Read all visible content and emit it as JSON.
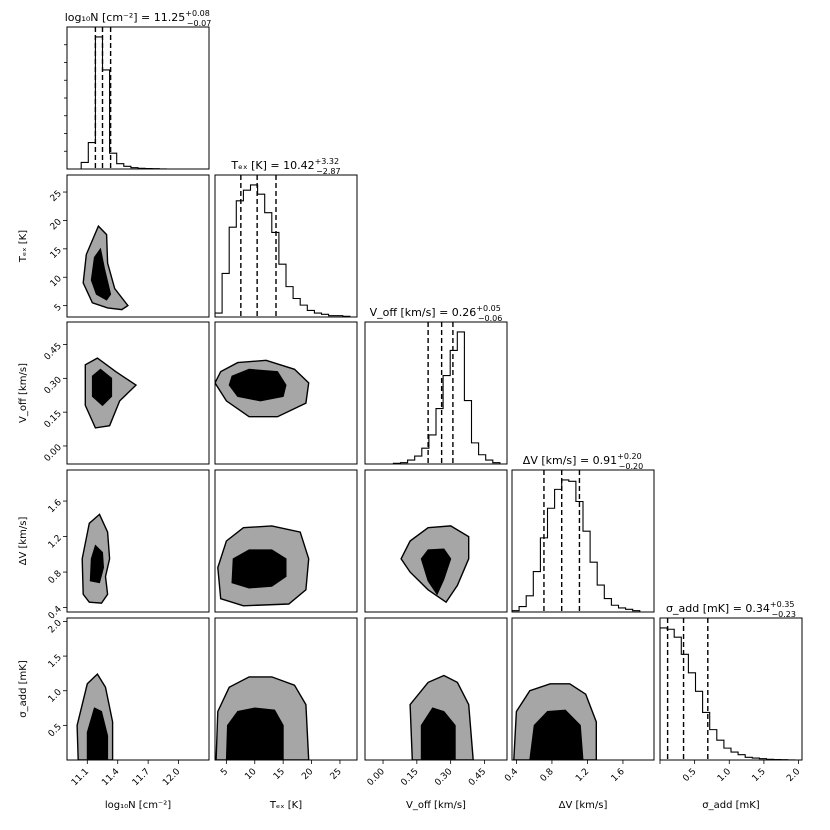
{
  "chart_data": {
    "type": "corner",
    "parameters": [
      {
        "key": "logN",
        "label": "log₁₀N [cm⁻²]",
        "title_name": "log₁₀N [cm⁻²]",
        "median": 11.25,
        "err_plus": 0.08,
        "err_minus": 0.07,
        "median_text": "11.25",
        "err_plus_text": "+0.08",
        "err_minus_text": "−0.07",
        "range": [
          10.9,
          12.3
        ],
        "ticks": [
          11.1,
          11.4,
          11.7,
          12.0
        ],
        "tick_labels": [
          "11.1",
          "11.4",
          "11.7",
          "12.0"
        ],
        "quantiles": [
          11.18,
          11.25,
          11.33
        ],
        "hist": [
          0,
          0,
          0.05,
          0.2,
          1.0,
          0.75,
          0.12,
          0.04,
          0.02,
          0.01,
          0.005,
          0.003,
          0.002,
          0.001,
          0,
          0,
          0,
          0,
          0,
          0
        ],
        "contour_center": 11.22
      },
      {
        "key": "Tex",
        "label": "Tₑₓ [K]",
        "title_name": "Tₑₓ [K]",
        "median": 10.42,
        "err_plus": 3.32,
        "err_minus": 2.87,
        "median_text": "10.42",
        "err_plus_text": "+3.32",
        "err_minus_text": "−2.87",
        "range": [
          3,
          28
        ],
        "ticks": [
          5,
          10,
          15,
          20,
          25
        ],
        "tick_labels": [
          "5",
          "10",
          "15",
          "20",
          "25"
        ],
        "quantiles": [
          7.55,
          10.42,
          13.74
        ],
        "hist": [
          0.03,
          0.33,
          0.68,
          0.88,
          0.96,
          1.0,
          0.93,
          0.79,
          0.64,
          0.4,
          0.23,
          0.14,
          0.09,
          0.05,
          0.03,
          0.02,
          0.01,
          0.01,
          0.005,
          0.0
        ],
        "contour_center": 10.4
      },
      {
        "key": "Voff",
        "label": "V_off [km/s]",
        "title_name": "V_off [km/s]",
        "median": 0.26,
        "err_plus": 0.05,
        "err_minus": 0.06,
        "median_text": "0.26",
        "err_plus_text": "+0.05",
        "err_minus_text": "−0.06",
        "range": [
          -0.08,
          0.55
        ],
        "ticks": [
          0.0,
          0.15,
          0.3,
          0.45
        ],
        "tick_labels": [
          "0.00",
          "0.15",
          "0.30",
          "0.45"
        ],
        "quantiles": [
          0.2,
          0.26,
          0.31
        ],
        "hist": [
          0,
          0,
          0,
          0,
          0.005,
          0.01,
          0.03,
          0.06,
          0.12,
          0.22,
          0.42,
          0.67,
          0.86,
          1.0,
          0.48,
          0.16,
          0.07,
          0.03,
          0.01,
          0
        ],
        "contour_center": 0.26
      },
      {
        "key": "dV",
        "label": "ΔV [km/s]",
        "title_name": "ΔV [km/s]",
        "median": 0.91,
        "err_plus": 0.2,
        "err_minus": 0.2,
        "median_text": "0.91",
        "err_plus_text": "+0.20",
        "err_minus_text": "−0.20",
        "range": [
          0.35,
          1.95
        ],
        "ticks": [
          0.4,
          0.8,
          1.2,
          1.6
        ],
        "tick_labels": [
          "0.4",
          "0.8",
          "1.2",
          "1.6"
        ],
        "quantiles": [
          0.71,
          0.91,
          1.11
        ],
        "hist": [
          0.01,
          0.04,
          0.12,
          0.3,
          0.55,
          0.77,
          0.91,
          0.98,
          0.97,
          0.82,
          0.6,
          0.37,
          0.2,
          0.1,
          0.05,
          0.03,
          0.02,
          0.01,
          0,
          0
        ],
        "contour_center": 0.88
      },
      {
        "key": "sadd",
        "label": "σ_add [mK]",
        "title_name": "σ_add [mK]",
        "median": 0.34,
        "err_plus": 0.35,
        "err_minus": 0.23,
        "median_text": "0.34",
        "err_plus_text": "+0.35",
        "err_minus_text": "−0.23",
        "range": [
          0.0,
          2.05
        ],
        "ticks": [
          0.5,
          1.0,
          1.5,
          2.0
        ],
        "tick_labels": [
          "0.5",
          "1.0",
          "1.5",
          "2.0"
        ],
        "diag_ticks": [
          0.0,
          0.5,
          1.0,
          1.5,
          2.0
        ],
        "diag_tick_labels": [
          "",
          "0.5",
          "1.0",
          "1.5",
          "2.0"
        ],
        "quantiles": [
          0.11,
          0.34,
          0.69
        ],
        "hist": [
          1.0,
          0.99,
          0.93,
          0.8,
          0.66,
          0.52,
          0.36,
          0.23,
          0.15,
          0.09,
          0.06,
          0.04,
          0.02,
          0.015,
          0.01,
          0.005,
          0.003,
          0.002,
          0.001,
          0
        ],
        "contour_center": 0.3
      }
    ],
    "contours": {
      "logN-Tex": {
        "outer": [
          [
            11.15,
            5.5
          ],
          [
            11.06,
            9
          ],
          [
            11.09,
            14
          ],
          [
            11.21,
            19
          ],
          [
            11.29,
            17.5
          ],
          [
            11.3,
            12.5
          ],
          [
            11.37,
            8
          ],
          [
            11.5,
            5
          ],
          [
            11.44,
            4.3
          ],
          [
            11.3,
            4.6
          ]
        ],
        "inner": [
          [
            11.19,
            7
          ],
          [
            11.14,
            9.5
          ],
          [
            11.17,
            13.5
          ],
          [
            11.23,
            15
          ],
          [
            11.27,
            11.5
          ],
          [
            11.33,
            7
          ],
          [
            11.29,
            6
          ]
        ]
      },
      "logN-Voff": {
        "outer": [
          [
            11.08,
            0.18
          ],
          [
            11.08,
            0.36
          ],
          [
            11.2,
            0.39
          ],
          [
            11.38,
            0.33
          ],
          [
            11.58,
            0.27
          ],
          [
            11.42,
            0.2
          ],
          [
            11.32,
            0.09
          ],
          [
            11.18,
            0.08
          ]
        ],
        "inner": [
          [
            11.15,
            0.22
          ],
          [
            11.15,
            0.31
          ],
          [
            11.23,
            0.34
          ],
          [
            11.34,
            0.3
          ],
          [
            11.34,
            0.22
          ],
          [
            11.25,
            0.18
          ]
        ]
      },
      "logN-dV": {
        "outer": [
          [
            11.06,
            0.55
          ],
          [
            11.05,
            0.95
          ],
          [
            11.12,
            1.35
          ],
          [
            11.22,
            1.45
          ],
          [
            11.3,
            1.25
          ],
          [
            11.32,
            0.95
          ],
          [
            11.28,
            0.75
          ],
          [
            11.3,
            0.55
          ],
          [
            11.24,
            0.45
          ],
          [
            11.12,
            0.46
          ]
        ],
        "inner": [
          [
            11.13,
            0.7
          ],
          [
            11.14,
            0.95
          ],
          [
            11.18,
            1.1
          ],
          [
            11.25,
            1.02
          ],
          [
            11.26,
            0.85
          ],
          [
            11.22,
            0.68
          ]
        ]
      },
      "logN-sadd": {
        "outer": [
          [
            11.01,
            0.0
          ],
          [
            11.0,
            0.5
          ],
          [
            11.1,
            1.1
          ],
          [
            11.2,
            1.24
          ],
          [
            11.28,
            1.05
          ],
          [
            11.35,
            0.55
          ],
          [
            11.35,
            0.0
          ]
        ],
        "inner": [
          [
            11.1,
            0.0
          ],
          [
            11.1,
            0.4
          ],
          [
            11.17,
            0.75
          ],
          [
            11.24,
            0.7
          ],
          [
            11.3,
            0.35
          ],
          [
            11.3,
            0.0
          ]
        ]
      },
      "Tex-Voff": {
        "outer": [
          [
            3,
            0.28
          ],
          [
            5,
            0.2
          ],
          [
            9,
            0.13
          ],
          [
            14,
            0.13
          ],
          [
            19,
            0.19
          ],
          [
            19.5,
            0.28
          ],
          [
            17,
            0.34
          ],
          [
            12,
            0.38
          ],
          [
            7,
            0.37
          ],
          [
            4,
            0.33
          ]
        ],
        "inner": [
          [
            5.5,
            0.27
          ],
          [
            7,
            0.22
          ],
          [
            11,
            0.2
          ],
          [
            15,
            0.22
          ],
          [
            15.5,
            0.27
          ],
          [
            14,
            0.33
          ],
          [
            9,
            0.34
          ],
          [
            6,
            0.31
          ]
        ]
      },
      "Tex-dV": {
        "outer": [
          [
            4,
            0.5
          ],
          [
            3.5,
            0.85
          ],
          [
            5,
            1.15
          ],
          [
            8,
            1.3
          ],
          [
            13,
            1.32
          ],
          [
            18,
            1.25
          ],
          [
            19.5,
            0.95
          ],
          [
            19,
            0.6
          ],
          [
            16,
            0.44
          ],
          [
            8,
            0.42
          ]
        ],
        "inner": [
          [
            6,
            0.68
          ],
          [
            6.2,
            0.95
          ],
          [
            9,
            1.05
          ],
          [
            13,
            1.05
          ],
          [
            15.5,
            0.95
          ],
          [
            15.5,
            0.75
          ],
          [
            13,
            0.64
          ],
          [
            9,
            0.62
          ]
        ]
      },
      "Tex-sadd": {
        "outer": [
          [
            3.2,
            0.0
          ],
          [
            3.5,
            0.7
          ],
          [
            5.5,
            1.05
          ],
          [
            9,
            1.2
          ],
          [
            13,
            1.2
          ],
          [
            17,
            1.08
          ],
          [
            19,
            0.8
          ],
          [
            19.5,
            0.0
          ]
        ],
        "inner": [
          [
            5,
            0.0
          ],
          [
            5.2,
            0.5
          ],
          [
            7,
            0.7
          ],
          [
            10,
            0.75
          ],
          [
            13.5,
            0.72
          ],
          [
            15,
            0.5
          ],
          [
            15,
            0.0
          ]
        ]
      },
      "Voff-dV": {
        "outer": [
          [
            0.08,
            0.95
          ],
          [
            0.12,
            1.15
          ],
          [
            0.2,
            1.3
          ],
          [
            0.3,
            1.32
          ],
          [
            0.38,
            1.2
          ],
          [
            0.38,
            0.95
          ],
          [
            0.33,
            0.65
          ],
          [
            0.28,
            0.46
          ],
          [
            0.2,
            0.6
          ],
          [
            0.12,
            0.8
          ]
        ],
        "inner": [
          [
            0.17,
            0.95
          ],
          [
            0.2,
            1.05
          ],
          [
            0.27,
            1.06
          ],
          [
            0.3,
            0.95
          ],
          [
            0.27,
            0.72
          ],
          [
            0.24,
            0.55
          ],
          [
            0.2,
            0.7
          ]
        ]
      },
      "Voff-sadd": {
        "outer": [
          [
            0.13,
            0.0
          ],
          [
            0.12,
            0.8
          ],
          [
            0.2,
            1.12
          ],
          [
            0.27,
            1.22
          ],
          [
            0.33,
            1.12
          ],
          [
            0.38,
            0.8
          ],
          [
            0.4,
            0.0
          ]
        ],
        "inner": [
          [
            0.17,
            0.0
          ],
          [
            0.17,
            0.5
          ],
          [
            0.22,
            0.75
          ],
          [
            0.27,
            0.7
          ],
          [
            0.32,
            0.5
          ],
          [
            0.32,
            0.0
          ]
        ]
      },
      "dV-sadd": {
        "outer": [
          [
            0.37,
            0.0
          ],
          [
            0.4,
            0.7
          ],
          [
            0.55,
            1.0
          ],
          [
            0.78,
            1.1
          ],
          [
            1.0,
            1.1
          ],
          [
            1.18,
            0.95
          ],
          [
            1.3,
            0.55
          ],
          [
            1.3,
            0.0
          ]
        ],
        "inner": [
          [
            0.55,
            0.0
          ],
          [
            0.6,
            0.5
          ],
          [
            0.75,
            0.7
          ],
          [
            0.95,
            0.72
          ],
          [
            1.12,
            0.5
          ],
          [
            1.15,
            0.0
          ]
        ]
      }
    }
  }
}
